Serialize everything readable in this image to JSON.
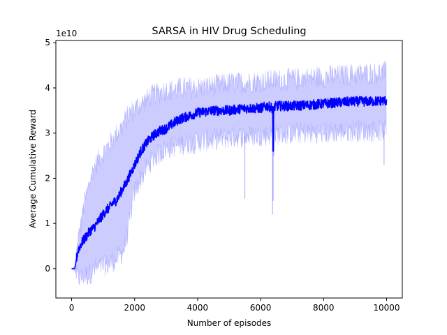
{
  "chart_data": {
    "type": "line",
    "title": "SARSA in HIV Drug Scheduling",
    "xlabel": "Number of episodes",
    "ylabel": "Average Cumulative Reward",
    "y_scale_label": "1e10",
    "xlim": [
      -500,
      10500
    ],
    "ylim": [
      -0.65,
      5.05
    ],
    "y_unit_multiplier": 10000000000,
    "x_ticks": [
      0,
      2000,
      4000,
      6000,
      8000,
      10000
    ],
    "x_tick_labels": [
      "0",
      "2000",
      "4000",
      "6000",
      "8000",
      "10000"
    ],
    "y_ticks": [
      0,
      1,
      2,
      3,
      4,
      5
    ],
    "y_tick_labels": [
      "0",
      "1",
      "2",
      "3",
      "4",
      "5"
    ],
    "grid": false,
    "legend": null,
    "colors": {
      "mean": "#0000ff",
      "band": "#0000ff",
      "band_opacity": 0.2
    },
    "series": [
      {
        "style": "mean-line",
        "x": [
          0,
          100,
          150,
          200,
          300,
          400,
          500,
          600,
          700,
          800,
          900,
          1000,
          1100,
          1200,
          1300,
          1400,
          1500,
          1600,
          1700,
          1800,
          1900,
          2000,
          2100,
          2200,
          2400,
          2600,
          2800,
          3000,
          3200,
          3400,
          3600,
          3800,
          4000,
          4500,
          5000,
          5500,
          6000,
          6200,
          6400,
          6500,
          6700,
          7000,
          7500,
          8000,
          8500,
          9000,
          9500,
          10000
        ],
        "y": [
          0.0,
          0.0,
          0.2,
          0.4,
          0.55,
          0.65,
          0.75,
          0.85,
          0.9,
          1.0,
          1.1,
          1.2,
          1.3,
          1.35,
          1.45,
          1.5,
          1.6,
          1.75,
          1.85,
          2.0,
          2.15,
          2.3,
          2.45,
          2.6,
          2.8,
          2.95,
          3.05,
          3.1,
          3.2,
          3.3,
          3.35,
          3.4,
          3.45,
          3.5,
          3.5,
          3.55,
          3.55,
          3.6,
          3.55,
          3.6,
          3.6,
          3.6,
          3.62,
          3.65,
          3.68,
          3.7,
          3.7,
          3.72
        ]
      },
      {
        "style": "band-upper",
        "x": [
          0,
          100,
          200,
          300,
          400,
          500,
          600,
          700,
          800,
          1000,
          1200,
          1400,
          1600,
          1800,
          2000,
          2200,
          2400,
          2600,
          2800,
          3000,
          3200,
          3500,
          4000,
          4500,
          5000,
          6000,
          7000,
          8000,
          9000,
          10000
        ],
        "y": [
          0.0,
          0.05,
          0.6,
          1.0,
          1.4,
          1.7,
          2.0,
          2.2,
          2.35,
          2.55,
          2.75,
          2.95,
          3.15,
          3.4,
          3.55,
          3.65,
          3.75,
          3.85,
          3.9,
          3.95,
          3.95,
          4.0,
          4.0,
          4.05,
          4.1,
          4.15,
          4.2,
          4.25,
          4.3,
          4.35
        ]
      },
      {
        "style": "band-lower",
        "x": [
          0,
          100,
          200,
          300,
          400,
          500,
          600,
          700,
          800,
          1000,
          1200,
          1400,
          1600,
          1700,
          1800,
          1900,
          2000,
          2200,
          2400,
          2600,
          2800,
          3000,
          3200,
          3500,
          4000,
          4500,
          5000,
          6000,
          7000,
          8000,
          9000,
          10000
        ],
        "y": [
          0.0,
          -0.05,
          -0.2,
          -0.2,
          -0.15,
          -0.15,
          -0.1,
          -0.05,
          0.0,
          0.05,
          0.1,
          0.2,
          0.35,
          0.5,
          0.9,
          1.3,
          1.7,
          2.0,
          2.25,
          2.45,
          2.55,
          2.65,
          2.7,
          2.75,
          2.8,
          2.85,
          2.9,
          2.95,
          3.0,
          3.0,
          3.05,
          3.05
        ]
      },
      {
        "style": "dip-spikes",
        "x": [
          5500,
          6380,
          6400,
          6420,
          9920
        ],
        "y": [
          1.55,
          1.2,
          1.5,
          2.5,
          2.3
        ]
      }
    ]
  }
}
